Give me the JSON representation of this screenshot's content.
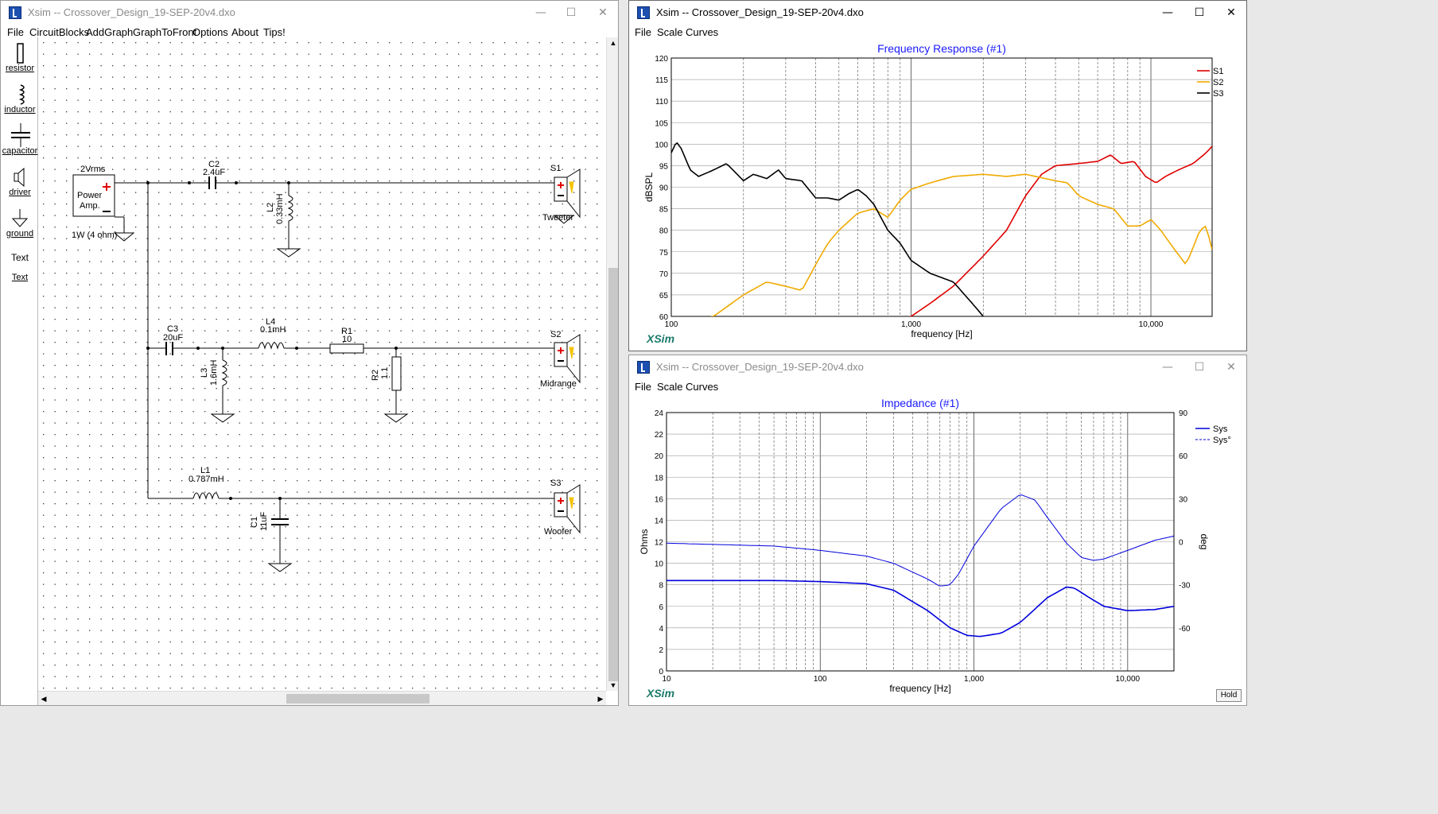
{
  "left_window": {
    "title": "Xsim -- Crossover_Design_19-SEP-20v4.dxo",
    "menu": [
      "File",
      "CircuitBlocks",
      "AddGraph",
      "GraphToFront",
      "Options",
      "About",
      "Tips!"
    ],
    "palette": [
      {
        "label": "resistor",
        "icon": "resistor-icon"
      },
      {
        "label": "inductor",
        "icon": "inductor-icon"
      },
      {
        "label": "capacitor",
        "icon": "capacitor-icon"
      },
      {
        "label": "driver",
        "icon": "driver-icon"
      },
      {
        "label": "ground",
        "icon": "ground-icon"
      },
      {
        "label": "Text",
        "icon": "text-icon"
      },
      {
        "label": "Text",
        "icon": ""
      }
    ],
    "schematic": {
      "source_top": "2Vrms",
      "source_label": "Power\nAmp.",
      "source_bottom": "1W (4 ohm)",
      "C2": {
        "name": "C2",
        "value": "2.4uF"
      },
      "L2": {
        "name": "L2",
        "value": "0.33mH"
      },
      "S1": {
        "name": "S1",
        "label": "Tweeter"
      },
      "C3": {
        "name": "C3",
        "value": "20uF"
      },
      "L4": {
        "name": "L4",
        "value": "0.1mH"
      },
      "R1": {
        "name": "R1",
        "value": "10"
      },
      "L3": {
        "name": "L3",
        "value": "1.6mH"
      },
      "R2": {
        "name": "R2",
        "value": "1.1"
      },
      "S2": {
        "name": "S2",
        "label": "Midrange"
      },
      "L1": {
        "name": "L1",
        "value": "0.787mH"
      },
      "C1": {
        "name": "C1",
        "value": "11uF"
      },
      "S3": {
        "name": "S3",
        "label": "Woofer"
      }
    }
  },
  "freq_window": {
    "title": "Xsim -- Crossover_Design_19-SEP-20v4.dxo",
    "menu": [
      "File",
      "Scale",
      "Curves"
    ],
    "chart_data": {
      "type": "line",
      "title": "Frequency Response (#1)",
      "xlabel": "frequency [Hz]",
      "ylabel": "dBSPL",
      "xscale": "log",
      "xlim": [
        100,
        18000
      ],
      "ylim": [
        60,
        120
      ],
      "yticks": [
        60,
        65,
        70,
        75,
        80,
        85,
        90,
        95,
        100,
        105,
        110,
        115,
        120
      ],
      "xtick_labels": [
        "100",
        "1,000",
        "10,000"
      ],
      "watermark": "XSim",
      "legend_position": "top-right",
      "series": [
        {
          "name": "S1",
          "color": "#e00000",
          "x": [
            600,
            800,
            1000,
            1200,
            1500,
            2000,
            2500,
            3000,
            3500,
            4000,
            5000,
            6000,
            6800,
            7500,
            8500,
            9500,
            10500,
            11500,
            13000,
            15000,
            17000,
            18000
          ],
          "y": [
            55,
            58,
            60,
            63,
            67,
            74,
            80,
            88,
            93,
            95,
            95.5,
            96,
            97.5,
            95.5,
            96,
            92.5,
            91,
            92.5,
            94,
            95.5,
            98,
            99.5
          ]
        },
        {
          "name": "S2",
          "color": "#f0aa00",
          "x": [
            100,
            150,
            200,
            250,
            300,
            350,
            400,
            450,
            500,
            600,
            700,
            800,
            900,
            1000,
            1200,
            1500,
            2000,
            2500,
            3000,
            4000,
            4500,
            5000,
            6000,
            7000,
            8000,
            9000,
            10000,
            11000,
            12000,
            14000,
            15000,
            16000,
            17000,
            18000
          ],
          "y": [
            58,
            60,
            65,
            68,
            67,
            66,
            72,
            77,
            80,
            84,
            85,
            83,
            87,
            89.5,
            91,
            92.5,
            93,
            92.5,
            93,
            91.5,
            91,
            88,
            86,
            85,
            81,
            81,
            82.5,
            80,
            77,
            72,
            76,
            80,
            81,
            75.5
          ]
        },
        {
          "name": "S3",
          "color": "#000000",
          "x": [
            100,
            105,
            110,
            120,
            130,
            150,
            170,
            200,
            220,
            250,
            280,
            300,
            350,
            400,
            450,
            500,
            550,
            600,
            650,
            700,
            800,
            900,
            1000,
            1200,
            1500,
            1800,
            2000
          ],
          "y": [
            98,
            100.5,
            99,
            94,
            92.5,
            94,
            95.5,
            91.5,
            93,
            92,
            94,
            92,
            91.5,
            87.5,
            87.5,
            87,
            88.5,
            89.5,
            88,
            86,
            80,
            77,
            73,
            70,
            68,
            63,
            60
          ]
        }
      ]
    }
  },
  "imp_window": {
    "title": "Xsim -- Crossover_Design_19-SEP-20v4.dxo",
    "menu": [
      "File",
      "Scale",
      "Curves"
    ],
    "hold_label": "Hold",
    "chart_data": {
      "type": "line",
      "title": "Impedance (#1)",
      "xlabel": "frequency [Hz]",
      "ylabel": "Ohms",
      "y2label": "deg",
      "xscale": "log",
      "xlim": [
        10,
        20000
      ],
      "ylim": [
        0,
        24
      ],
      "y2lim": [
        -90,
        90
      ],
      "yticks": [
        0,
        2,
        4,
        6,
        8,
        10,
        12,
        14,
        16,
        18,
        20,
        22,
        24
      ],
      "y2ticks": [
        -60,
        -30,
        0,
        30,
        60,
        90
      ],
      "xtick_labels": [
        "10",
        "100",
        "1,000",
        "10,000"
      ],
      "watermark": "XSim",
      "legend_position": "top-right",
      "series": [
        {
          "name": "Sys",
          "color": "#0000dd",
          "axis": "left",
          "x": [
            10,
            50,
            100,
            200,
            300,
            500,
            700,
            900,
            1100,
            1500,
            2000,
            3000,
            4000,
            4500,
            5500,
            7000,
            10000,
            15000,
            20000
          ],
          "y": [
            8.4,
            8.4,
            8.3,
            8.1,
            7.5,
            5.6,
            4.0,
            3.3,
            3.2,
            3.5,
            4.5,
            6.8,
            7.8,
            7.7,
            6.9,
            6.0,
            5.6,
            5.7,
            6.0
          ]
        },
        {
          "name": "Sys°",
          "color": "#0000dd",
          "axis": "right",
          "dashed": true,
          "x": [
            10,
            50,
            100,
            200,
            300,
            500,
            600,
            700,
            800,
            1000,
            1500,
            2000,
            2500,
            3000,
            4000,
            5000,
            6000,
            7000,
            10000,
            15000,
            20000
          ],
          "y": [
            -1,
            -3,
            -6,
            -10,
            -15,
            -26,
            -31,
            -30,
            -22,
            -3,
            23,
            33,
            29,
            17,
            -1,
            -11,
            -13,
            -12,
            -6,
            1,
            4
          ]
        }
      ]
    }
  }
}
